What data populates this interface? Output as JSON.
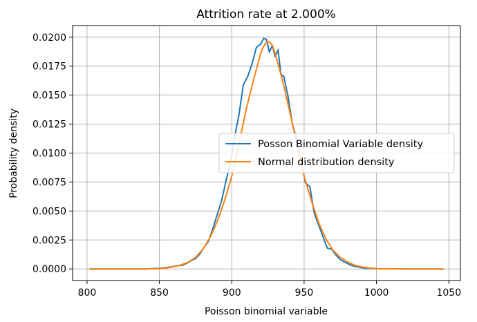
{
  "chart_data": {
    "type": "line",
    "title": "Attrition rate at 2.000%",
    "xlabel": "Poisson binomial variable",
    "ylabel": "Probability density",
    "xlim": [
      790,
      1058
    ],
    "ylim": [
      -0.001,
      0.021
    ],
    "xticks": [
      800,
      850,
      900,
      950,
      1000,
      1050
    ],
    "xtick_labels": [
      "800",
      "850",
      "900",
      "950",
      "1000",
      "1050"
    ],
    "yticks": [
      0.0,
      0.0025,
      0.005,
      0.0075,
      0.01,
      0.0125,
      0.015,
      0.0175,
      0.02
    ],
    "ytick_labels": [
      "0.0000",
      "0.0025",
      "0.0050",
      "0.0075",
      "0.0100",
      "0.0125",
      "0.0150",
      "0.0175",
      "0.0200"
    ],
    "grid": true,
    "legend_position": "center-right",
    "series": [
      {
        "name": "Posson Binomial Variable density",
        "color": "#1f77b4",
        "x": [
          802,
          820,
          840,
          850,
          855,
          860,
          863,
          866,
          869,
          872,
          875,
          878,
          881,
          884,
          887,
          890,
          893,
          896,
          899,
          902,
          905,
          908,
          911,
          914,
          917,
          920,
          922,
          924,
          926,
          928,
          930,
          932,
          934,
          936,
          939,
          942,
          945,
          948,
          951,
          954,
          957,
          960,
          963,
          966,
          969,
          972,
          975,
          978,
          981,
          984,
          987,
          990,
          995,
          1000,
          1020,
          1046
        ],
        "y": [
          0.0,
          0.0,
          0.0,
          5e-05,
          0.00012,
          0.00022,
          0.0003,
          0.00032,
          0.0005,
          0.00072,
          0.0009,
          0.0013,
          0.0019,
          0.0024,
          0.0035,
          0.0047,
          0.0059,
          0.0076,
          0.0091,
          0.0114,
          0.0133,
          0.0159,
          0.0166,
          0.0177,
          0.0191,
          0.0194,
          0.0199,
          0.0198,
          0.0187,
          0.0193,
          0.0183,
          0.0189,
          0.0168,
          0.0166,
          0.0148,
          0.0124,
          0.0112,
          0.0092,
          0.0074,
          0.0071,
          0.0048,
          0.0038,
          0.0028,
          0.0018,
          0.0017,
          0.0012,
          0.0008,
          0.0006,
          0.0004,
          0.00025,
          0.00018,
          0.0001,
          5e-05,
          2e-05,
          0.0,
          0.0
        ]
      },
      {
        "name": "Normal distribution density",
        "color": "#ff7f0e",
        "x": [
          802,
          820,
          840,
          850,
          855,
          860,
          865,
          870,
          875,
          880,
          885,
          890,
          895,
          900,
          905,
          910,
          915,
          920,
          922,
          924,
          926,
          928,
          930,
          935,
          940,
          945,
          950,
          955,
          960,
          965,
          970,
          975,
          980,
          985,
          990,
          995,
          1000,
          1020,
          1046
        ],
        "y": [
          0.0,
          0.0,
          0.0,
          3e-05,
          8e-05,
          0.0002,
          0.00035,
          0.0006,
          0.001,
          0.0017,
          0.0027,
          0.0041,
          0.0059,
          0.008,
          0.0108,
          0.0138,
          0.0163,
          0.0186,
          0.0192,
          0.0196,
          0.0196,
          0.0193,
          0.0186,
          0.0163,
          0.0136,
          0.0108,
          0.008,
          0.0059,
          0.004,
          0.0026,
          0.0016,
          0.001,
          0.0006,
          0.00032,
          0.00016,
          8e-05,
          3e-05,
          0.0,
          0.0
        ]
      }
    ]
  }
}
